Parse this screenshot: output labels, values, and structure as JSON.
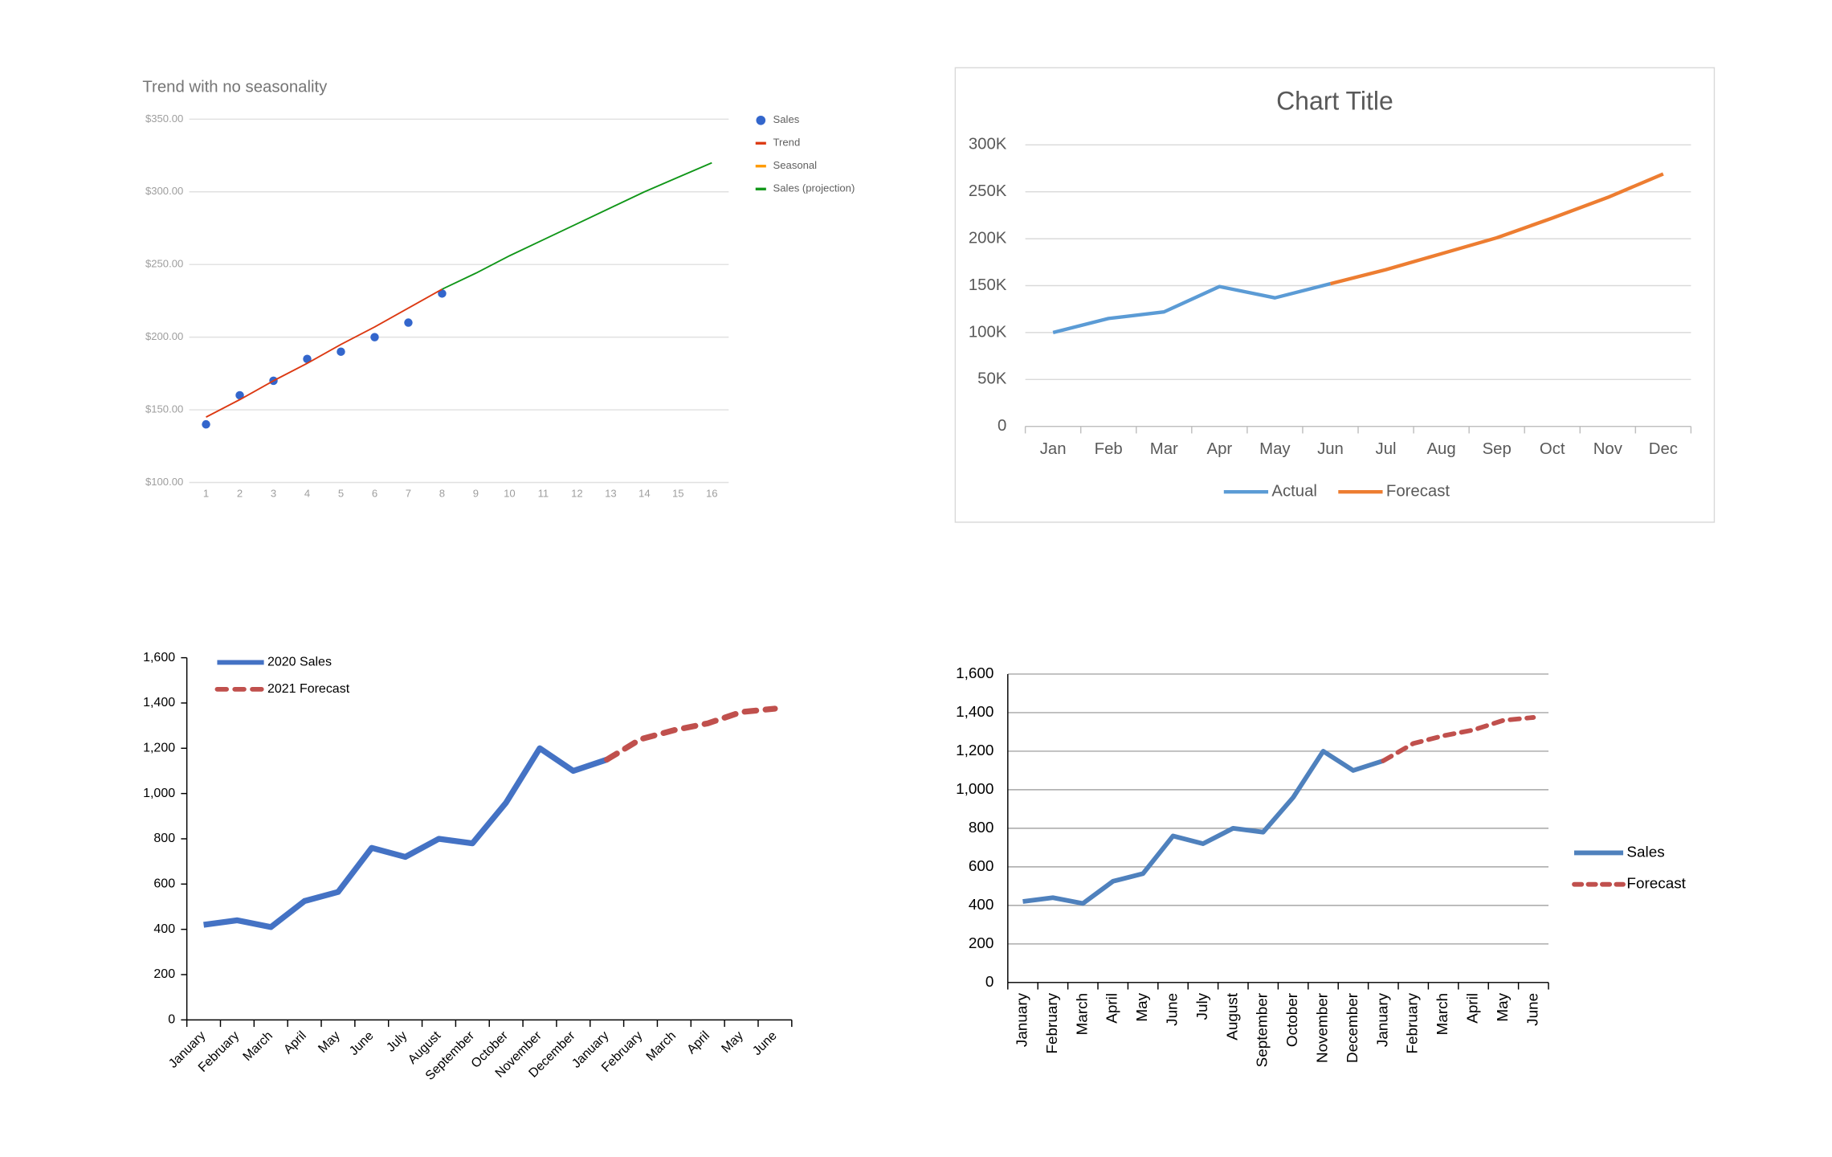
{
  "chart_data": [
    {
      "type": "line",
      "title": "Trend with no seasonality",
      "x": [
        1,
        2,
        3,
        4,
        5,
        6,
        7,
        8,
        9,
        10,
        11,
        12,
        13,
        14,
        15,
        16
      ],
      "xlim": [
        0.5,
        16.5
      ],
      "xticks": [
        1,
        2,
        3,
        4,
        5,
        6,
        7,
        8,
        9,
        10,
        11,
        12,
        13,
        14,
        15,
        16
      ],
      "ylim": [
        100,
        350
      ],
      "yticks": [
        {
          "value": 100,
          "label": "$100.00"
        },
        {
          "value": 150,
          "label": "$150.00"
        },
        {
          "value": 200,
          "label": "$200.00"
        },
        {
          "value": 250,
          "label": "$250.00"
        },
        {
          "value": 300,
          "label": "$300.00"
        },
        {
          "value": 350,
          "label": "$350.00"
        }
      ],
      "grid": true,
      "legend": "right",
      "series": [
        {
          "name": "Sales",
          "color": "#3366cc",
          "style": "markers",
          "values": [
            140,
            160,
            170,
            185,
            190,
            200,
            210,
            230,
            null,
            null,
            null,
            null,
            null,
            null,
            null,
            null
          ]
        },
        {
          "name": "Trend",
          "color": "#dc3912",
          "values": [
            145,
            157,
            170,
            182,
            195,
            207,
            220,
            233,
            null,
            null,
            null,
            null,
            null,
            null,
            null,
            null
          ]
        },
        {
          "name": "Seasonal",
          "color": "#ff9900",
          "values": [
            null,
            null,
            null,
            null,
            null,
            null,
            null,
            null,
            null,
            null,
            null,
            null,
            null,
            null,
            null,
            null
          ]
        },
        {
          "name": "Sales (projection)",
          "color": "#109618",
          "values": [
            null,
            null,
            null,
            null,
            null,
            null,
            null,
            233,
            244,
            256,
            267,
            278,
            289,
            300,
            310,
            320
          ]
        }
      ]
    },
    {
      "type": "line",
      "title": "Chart Title",
      "categories": [
        "Jan",
        "Feb",
        "Mar",
        "Apr",
        "May",
        "Jun",
        "Jul",
        "Aug",
        "Sep",
        "Oct",
        "Nov",
        "Dec"
      ],
      "ylim": [
        0,
        300000
      ],
      "yticks": [
        0,
        {
          "value": 50000,
          "label": "50K"
        },
        {
          "value": 100000,
          "label": "100K"
        },
        {
          "value": 150000,
          "label": "150K"
        },
        {
          "value": 200000,
          "label": "200K"
        },
        {
          "value": 250000,
          "label": "250K"
        },
        {
          "value": 300000,
          "label": "300K"
        }
      ],
      "grid": true,
      "legend": "bottom",
      "series": [
        {
          "name": "Actual",
          "color": "#5b9bd5",
          "values": [
            100000,
            115000,
            122000,
            149000,
            137000,
            152000,
            null,
            null,
            null,
            null,
            null,
            null
          ]
        },
        {
          "name": "Forecast",
          "color": "#ed7d31",
          "values": [
            null,
            null,
            null,
            null,
            null,
            152000,
            167000,
            184000,
            201000,
            222000,
            244000,
            269000
          ]
        }
      ]
    },
    {
      "type": "line",
      "categories": [
        "January",
        "February",
        "March",
        "April",
        "May",
        "June",
        "July",
        "August",
        "September",
        "October",
        "November",
        "December",
        "January",
        "February",
        "March",
        "April",
        "May",
        "June"
      ],
      "ylim": [
        0,
        1600
      ],
      "yticks": [
        0,
        200,
        400,
        600,
        800,
        {
          "value": 1000,
          "label": "1,000"
        },
        {
          "value": 1200,
          "label": "1,200"
        },
        {
          "value": 1400,
          "label": "1,400"
        },
        {
          "value": 1600,
          "label": "1,600"
        }
      ],
      "grid": false,
      "legend": "top-left",
      "x_label_rotation": -45,
      "series": [
        {
          "name": "2020 Sales",
          "color": "#4472c4",
          "values": [
            420,
            440,
            410,
            525,
            565,
            760,
            720,
            800,
            780,
            960,
            1200,
            1100,
            1150,
            null,
            null,
            null,
            null,
            null
          ]
        },
        {
          "name": "2021 Forecast",
          "color": "#c0504d",
          "line_style": "dashed",
          "values": [
            null,
            null,
            null,
            null,
            null,
            null,
            null,
            null,
            null,
            null,
            null,
            null,
            1150,
            1240,
            1280,
            1310,
            1360,
            1375
          ]
        }
      ]
    },
    {
      "type": "line",
      "categories": [
        "January",
        "February",
        "March",
        "April",
        "May",
        "June",
        "July",
        "August",
        "September",
        "October",
        "November",
        "December",
        "January",
        "February",
        "March",
        "April",
        "May",
        "June"
      ],
      "ylim": [
        0,
        1600
      ],
      "yticks": [
        0,
        200,
        400,
        600,
        800,
        {
          "value": 1000,
          "label": "1,000"
        },
        {
          "value": 1200,
          "label": "1,200"
        },
        {
          "value": 1400,
          "label": "1,400"
        },
        {
          "value": 1600,
          "label": "1,600"
        }
      ],
      "grid": true,
      "legend": "right",
      "x_label_rotation": -90,
      "series": [
        {
          "name": "Sales",
          "color": "#4f81bd",
          "values": [
            420,
            440,
            410,
            525,
            565,
            760,
            720,
            800,
            780,
            960,
            1200,
            1100,
            1150,
            null,
            null,
            null,
            null,
            null
          ]
        },
        {
          "name": "Forecast",
          "color": "#c0504d",
          "line_style": "dashed",
          "values": [
            null,
            null,
            null,
            null,
            null,
            null,
            null,
            null,
            null,
            null,
            null,
            null,
            1150,
            1240,
            1280,
            1310,
            1360,
            1375
          ]
        }
      ]
    }
  ]
}
